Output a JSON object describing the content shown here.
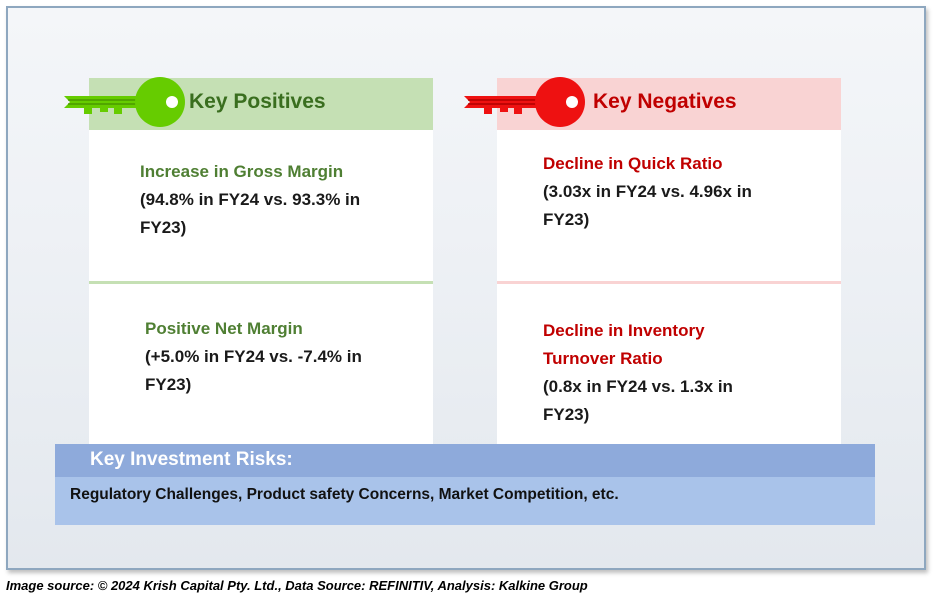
{
  "positives": {
    "title": "Key Positives",
    "items": [
      {
        "title": "Increase in Gross Margin",
        "desc": "(94.8% in FY24 vs. 93.3% in FY23)"
      },
      {
        "title": "Positive Net Margin",
        "desc": "(+5.0% in FY24 vs. -7.4% in FY23)"
      }
    ]
  },
  "negatives": {
    "title": "Key Negatives",
    "items": [
      {
        "title": "Decline in Quick Ratio",
        "desc": "(3.03x in FY24 vs. 4.96x in FY23)"
      },
      {
        "title": "Decline in Inventory Turnover Ratio",
        "desc": "(0.8x in FY24 vs. 1.3x in FY23)"
      }
    ]
  },
  "risks": {
    "title": "Key Investment Risks:",
    "text": "Regulatory Challenges, Product safety Concerns, Market Competition, etc."
  },
  "source": "Image source: © 2024 Krish Capital Pty. Ltd., Data Source: REFINITIV, Analysis: Kalkine Group",
  "colors": {
    "positive_accent": "#66cc00",
    "positive_header_bg": "#c5e0b4",
    "positive_text": "#4f7f33",
    "negative_accent": "#ee1111",
    "negative_header_bg": "#f9d3d3",
    "negative_text": "#c00000",
    "risks_header_bg": "#8eaadb",
    "risks_body_bg": "#a9c3ea"
  },
  "icons": {
    "positive": "green-key-icon",
    "negative": "red-key-icon"
  }
}
